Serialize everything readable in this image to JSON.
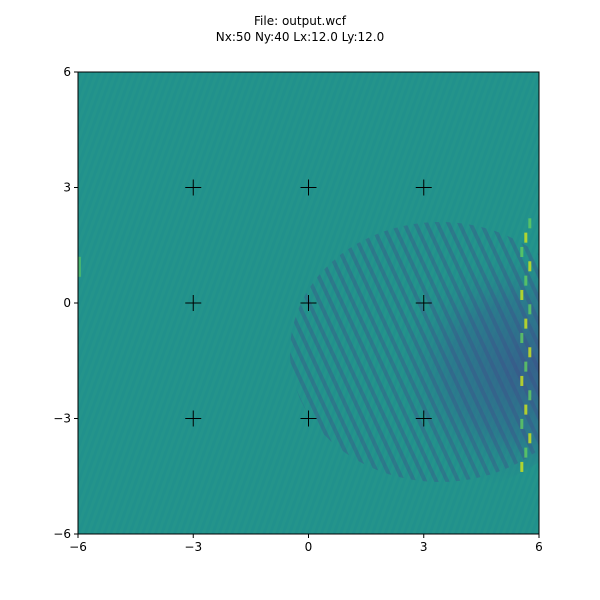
{
  "title_lines": [
    "File: output.wcf",
    "Nx:50  Ny:40  Lx:12.0  Ly:12.0"
  ],
  "chart_data": {
    "type": "heatmap",
    "title": "File: output.wcf\nNx:50  Ny:40  Lx:12.0  Ly:12.0",
    "xlabel": "",
    "ylabel": "",
    "xlim": [
      -6,
      6
    ],
    "ylim": [
      -6,
      6
    ],
    "xticks": [
      -6,
      -3,
      0,
      3,
      6
    ],
    "yticks": [
      -6,
      -3,
      0,
      3,
      6
    ],
    "xtick_labels": [
      "−6",
      "−3",
      "0",
      "3",
      "6"
    ],
    "ytick_labels": [
      "−6",
      "−3",
      "0",
      "3",
      "6"
    ],
    "colormap": "viridis",
    "background_color": "#21918c",
    "grid": false,
    "cross_markers": [
      {
        "x": -3,
        "y": 3
      },
      {
        "x": 0,
        "y": 3
      },
      {
        "x": 3,
        "y": 3
      },
      {
        "x": -3,
        "y": 0
      },
      {
        "x": 0,
        "y": 0
      },
      {
        "x": 3,
        "y": 0
      },
      {
        "x": -3,
        "y": -3
      },
      {
        "x": 0,
        "y": -3
      },
      {
        "x": 3,
        "y": -3
      }
    ],
    "features": [
      {
        "description": "disturbed wave region",
        "x_range": [
          -0.5,
          6
        ],
        "y_range": [
          -4.8,
          2.2
        ],
        "dominant_color": "#3b528b"
      },
      {
        "description": "bright streaks along right edge",
        "x": 5.8,
        "y_range": [
          -4.5,
          2.2
        ],
        "dominant_color": "#c8e020"
      }
    ]
  }
}
